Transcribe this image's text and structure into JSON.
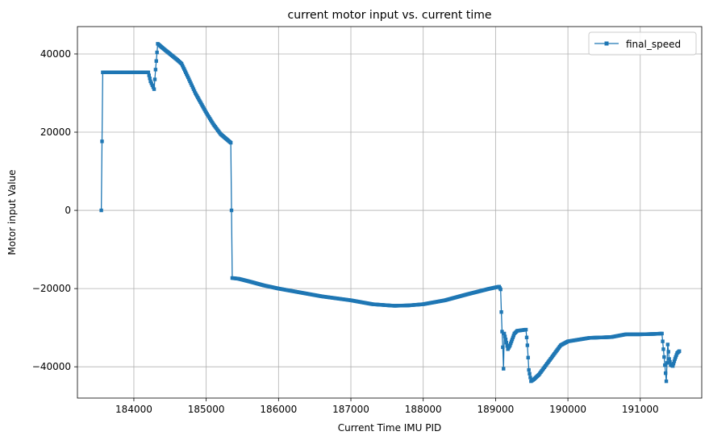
{
  "chart_data": {
    "type": "line",
    "title": "current motor input vs. current time",
    "xlabel": "Current Time IMU PID",
    "ylabel": "Motor input Value",
    "xlim": [
      183220,
      191850
    ],
    "ylim": [
      -48000,
      47000
    ],
    "xticks": [
      184000,
      185000,
      186000,
      187000,
      188000,
      189000,
      190000,
      191000
    ],
    "yticks": [
      -40000,
      -20000,
      0,
      20000,
      40000
    ],
    "xtick_labels": [
      "184000",
      "185000",
      "186000",
      "187000",
      "188000",
      "189000",
      "190000",
      "191000"
    ],
    "ytick_labels": [
      "−40000",
      "−20000",
      "0",
      "20000",
      "40000"
    ],
    "grid": true,
    "legend_position": "top-right",
    "series": [
      {
        "name": "final_speed",
        "color": "#1f77b4",
        "marker": "square",
        "anchors": [
          [
            183550,
            0
          ],
          [
            183570,
            35300
          ],
          [
            184200,
            35300
          ],
          [
            184230,
            33000
          ],
          [
            184280,
            31000
          ],
          [
            184300,
            36000
          ],
          [
            184330,
            42600
          ],
          [
            184400,
            41500
          ],
          [
            184500,
            40000
          ],
          [
            184600,
            38500
          ],
          [
            184660,
            37500
          ],
          [
            184750,
            34000
          ],
          [
            184850,
            30000
          ],
          [
            185000,
            25000
          ],
          [
            185100,
            22000
          ],
          [
            185200,
            19500
          ],
          [
            185340,
            17300
          ],
          [
            185360,
            -17300
          ],
          [
            185450,
            -17500
          ],
          [
            185600,
            -18200
          ],
          [
            185800,
            -19200
          ],
          [
            186000,
            -20000
          ],
          [
            186300,
            -21000
          ],
          [
            186600,
            -22000
          ],
          [
            187000,
            -23000
          ],
          [
            187300,
            -24000
          ],
          [
            187600,
            -24400
          ],
          [
            187800,
            -24300
          ],
          [
            188000,
            -24000
          ],
          [
            188300,
            -23000
          ],
          [
            188600,
            -21500
          ],
          [
            188900,
            -20100
          ],
          [
            189050,
            -19500
          ],
          [
            189070,
            -20200
          ],
          [
            189080,
            -26000
          ],
          [
            189090,
            -31000
          ],
          [
            189100,
            -35000
          ],
          [
            189110,
            -40500
          ],
          [
            189120,
            -31500
          ],
          [
            189140,
            -33000
          ],
          [
            189170,
            -35500
          ],
          [
            189200,
            -34500
          ],
          [
            189230,
            -33000
          ],
          [
            189260,
            -31500
          ],
          [
            189300,
            -30800
          ],
          [
            189420,
            -30500
          ],
          [
            189440,
            -34500
          ],
          [
            189460,
            -40800
          ],
          [
            189490,
            -43700
          ],
          [
            189530,
            -43200
          ],
          [
            189600,
            -42000
          ],
          [
            189700,
            -39500
          ],
          [
            189800,
            -37000
          ],
          [
            189900,
            -34500
          ],
          [
            190000,
            -33500
          ],
          [
            190300,
            -32600
          ],
          [
            190600,
            -32400
          ],
          [
            190800,
            -31700
          ],
          [
            191000,
            -31700
          ],
          [
            191200,
            -31600
          ],
          [
            191300,
            -31500
          ],
          [
            191330,
            -37500
          ],
          [
            191360,
            -43700
          ],
          [
            191380,
            -34300
          ],
          [
            191400,
            -38000
          ],
          [
            191420,
            -39500
          ],
          [
            191450,
            -39800
          ],
          [
            191480,
            -38000
          ],
          [
            191510,
            -36500
          ],
          [
            191540,
            -36000
          ]
        ]
      }
    ]
  }
}
